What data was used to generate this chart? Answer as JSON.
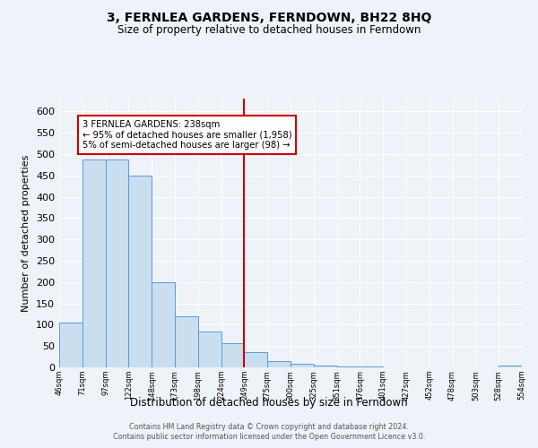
{
  "title": "3, FERNLEA GARDENS, FERNDOWN, BH22 8HQ",
  "subtitle": "Size of property relative to detached houses in Ferndown",
  "xlabel": "Distribution of detached houses by size in Ferndown",
  "ylabel": "Number of detached properties",
  "bar_values": [
    105,
    487,
    487,
    450,
    200,
    120,
    83,
    57,
    35,
    15,
    9,
    5,
    3,
    2,
    1,
    1,
    1,
    0,
    0,
    4
  ],
  "bin_labels": [
    "46sqm",
    "71sqm",
    "97sqm",
    "122sqm",
    "148sqm",
    "173sqm",
    "198sqm",
    "224sqm",
    "249sqm",
    "275sqm",
    "300sqm",
    "325sqm",
    "351sqm",
    "376sqm",
    "401sqm",
    "427sqm",
    "452sqm",
    "478sqm",
    "503sqm",
    "528sqm",
    "554sqm"
  ],
  "bar_color": "#c9dff0",
  "bar_edge_color": "#5b9bd5",
  "ylim": [
    0,
    630
  ],
  "yticks": [
    0,
    50,
    100,
    150,
    200,
    250,
    300,
    350,
    400,
    450,
    500,
    550,
    600
  ],
  "property_line_x": 7.5,
  "property_line_color": "#cc0000",
  "annotation_title": "3 FERNLEA GARDENS: 238sqm",
  "annotation_line1": "← 95% of detached houses are smaller (1,958)",
  "annotation_line2": "5% of semi-detached houses are larger (98) →",
  "annotation_box_color": "#cc0000",
  "footnote1": "Contains HM Land Registry data © Crown copyright and database right 2024.",
  "footnote2": "Contains public sector information licensed under the Open Government Licence v3.0.",
  "background_color": "#eef2f9"
}
